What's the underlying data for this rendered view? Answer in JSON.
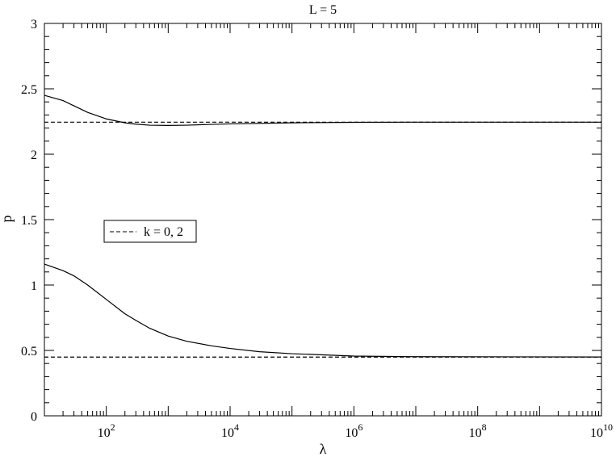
{
  "chart_data": {
    "type": "line",
    "title": "L = 5",
    "xlabel": "λ",
    "ylabel": "p",
    "x_scale": "log",
    "xlim": [
      10,
      10000000000
    ],
    "ylim": [
      0,
      3
    ],
    "x_major_ticks": [
      {
        "value": 100,
        "base": "10",
        "exp": "2"
      },
      {
        "value": 10000,
        "base": "10",
        "exp": "4"
      },
      {
        "value": 1000000,
        "base": "10",
        "exp": "6"
      },
      {
        "value": 100000000,
        "base": "10",
        "exp": "8"
      },
      {
        "value": 10000000000,
        "base": "10",
        "exp": "10"
      }
    ],
    "y_major_ticks": [
      {
        "value": 0,
        "label": "0"
      },
      {
        "value": 0.5,
        "label": "0.5"
      },
      {
        "value": 1,
        "label": "1"
      },
      {
        "value": 1.5,
        "label": "1.5"
      },
      {
        "value": 2,
        "label": "2"
      },
      {
        "value": 2.5,
        "label": "2.5"
      },
      {
        "value": 3,
        "label": "3"
      }
    ],
    "grid": false,
    "legend": {
      "position": "middle-left",
      "entries": [
        {
          "label": "k = 0, 2",
          "style": "dashed"
        }
      ]
    },
    "series": [
      {
        "style": "solid",
        "x": [
          10,
          20,
          30,
          50,
          100,
          200,
          300,
          500,
          1000,
          2000,
          5000,
          10000,
          100000,
          1000000,
          10000000,
          100000000,
          10000000000
        ],
        "y": [
          2.45,
          2.41,
          2.37,
          2.32,
          2.27,
          2.24,
          2.23,
          2.222,
          2.22,
          2.222,
          2.228,
          2.232,
          2.24,
          2.244,
          2.245,
          2.245,
          2.245
        ]
      },
      {
        "style": "solid",
        "x": [
          10,
          20,
          30,
          50,
          100,
          200,
          300,
          500,
          1000,
          2000,
          5000,
          10000,
          30000,
          100000,
          1000000,
          10000000,
          10000000000
        ],
        "y": [
          1.16,
          1.11,
          1.07,
          1.0,
          0.89,
          0.78,
          0.73,
          0.67,
          0.61,
          0.57,
          0.535,
          0.515,
          0.49,
          0.475,
          0.457,
          0.452,
          0.45
        ]
      },
      {
        "style": "dashed",
        "x": [
          10,
          10000000000
        ],
        "y": [
          2.245,
          2.245
        ]
      },
      {
        "style": "dashed",
        "x": [
          10,
          10000000000
        ],
        "y": [
          0.449,
          0.449
        ]
      }
    ]
  }
}
